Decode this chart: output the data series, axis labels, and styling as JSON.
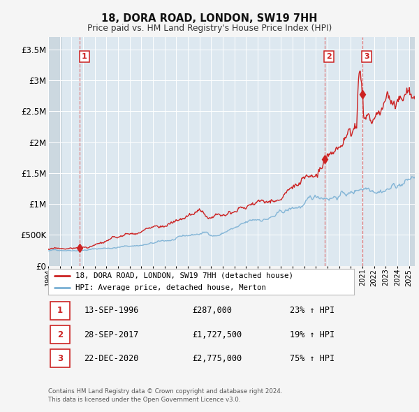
{
  "title": "18, DORA ROAD, LONDON, SW19 7HH",
  "subtitle": "Price paid vs. HM Land Registry's House Price Index (HPI)",
  "red_line_color": "#cc2222",
  "blue_line_color": "#7ab0d4",
  "vline_color": "#dd6666",
  "bg_color": "#f5f5f5",
  "plot_bg_color": "#dde8f0",
  "hatch_color": "#c8d4dd",
  "grid_color": "#ffffff",
  "sale_points": [
    {
      "date_num": 1996.71,
      "value": 287000,
      "label": "1"
    },
    {
      "date_num": 2017.74,
      "value": 1727500,
      "label": "2"
    },
    {
      "date_num": 2020.98,
      "value": 2775000,
      "label": "3"
    }
  ],
  "vline_dates": [
    1996.71,
    2017.74,
    2020.98
  ],
  "yticks": [
    0,
    500000,
    1000000,
    1500000,
    2000000,
    2500000,
    3000000,
    3500000
  ],
  "ytick_labels": [
    "£0",
    "£500K",
    "£1M",
    "£1.5M",
    "£2M",
    "£2.5M",
    "£3M",
    "£3.5M"
  ],
  "xmin": 1994.0,
  "xmax": 2025.5,
  "ymin": 0,
  "ymax": 3700000,
  "legend_red_label": "18, DORA ROAD, LONDON, SW19 7HH (detached house)",
  "legend_blue_label": "HPI: Average price, detached house, Merton",
  "table_rows": [
    {
      "num": "1",
      "date": "13-SEP-1996",
      "price": "£287,000",
      "hpi": "23% ↑ HPI"
    },
    {
      "num": "2",
      "date": "28-SEP-2017",
      "price": "£1,727,500",
      "hpi": "19% ↑ HPI"
    },
    {
      "num": "3",
      "date": "22-DEC-2020",
      "price": "£2,775,000",
      "hpi": "75% ↑ HPI"
    }
  ],
  "footer": "Contains HM Land Registry data © Crown copyright and database right 2024.\nThis data is licensed under the Open Government Licence v3.0.",
  "xtick_years": [
    1994,
    1995,
    1996,
    1997,
    1998,
    1999,
    2000,
    2001,
    2002,
    2003,
    2004,
    2005,
    2006,
    2007,
    2008,
    2009,
    2010,
    2011,
    2012,
    2013,
    2014,
    2015,
    2016,
    2017,
    2018,
    2019,
    2020,
    2021,
    2022,
    2023,
    2024,
    2025
  ]
}
